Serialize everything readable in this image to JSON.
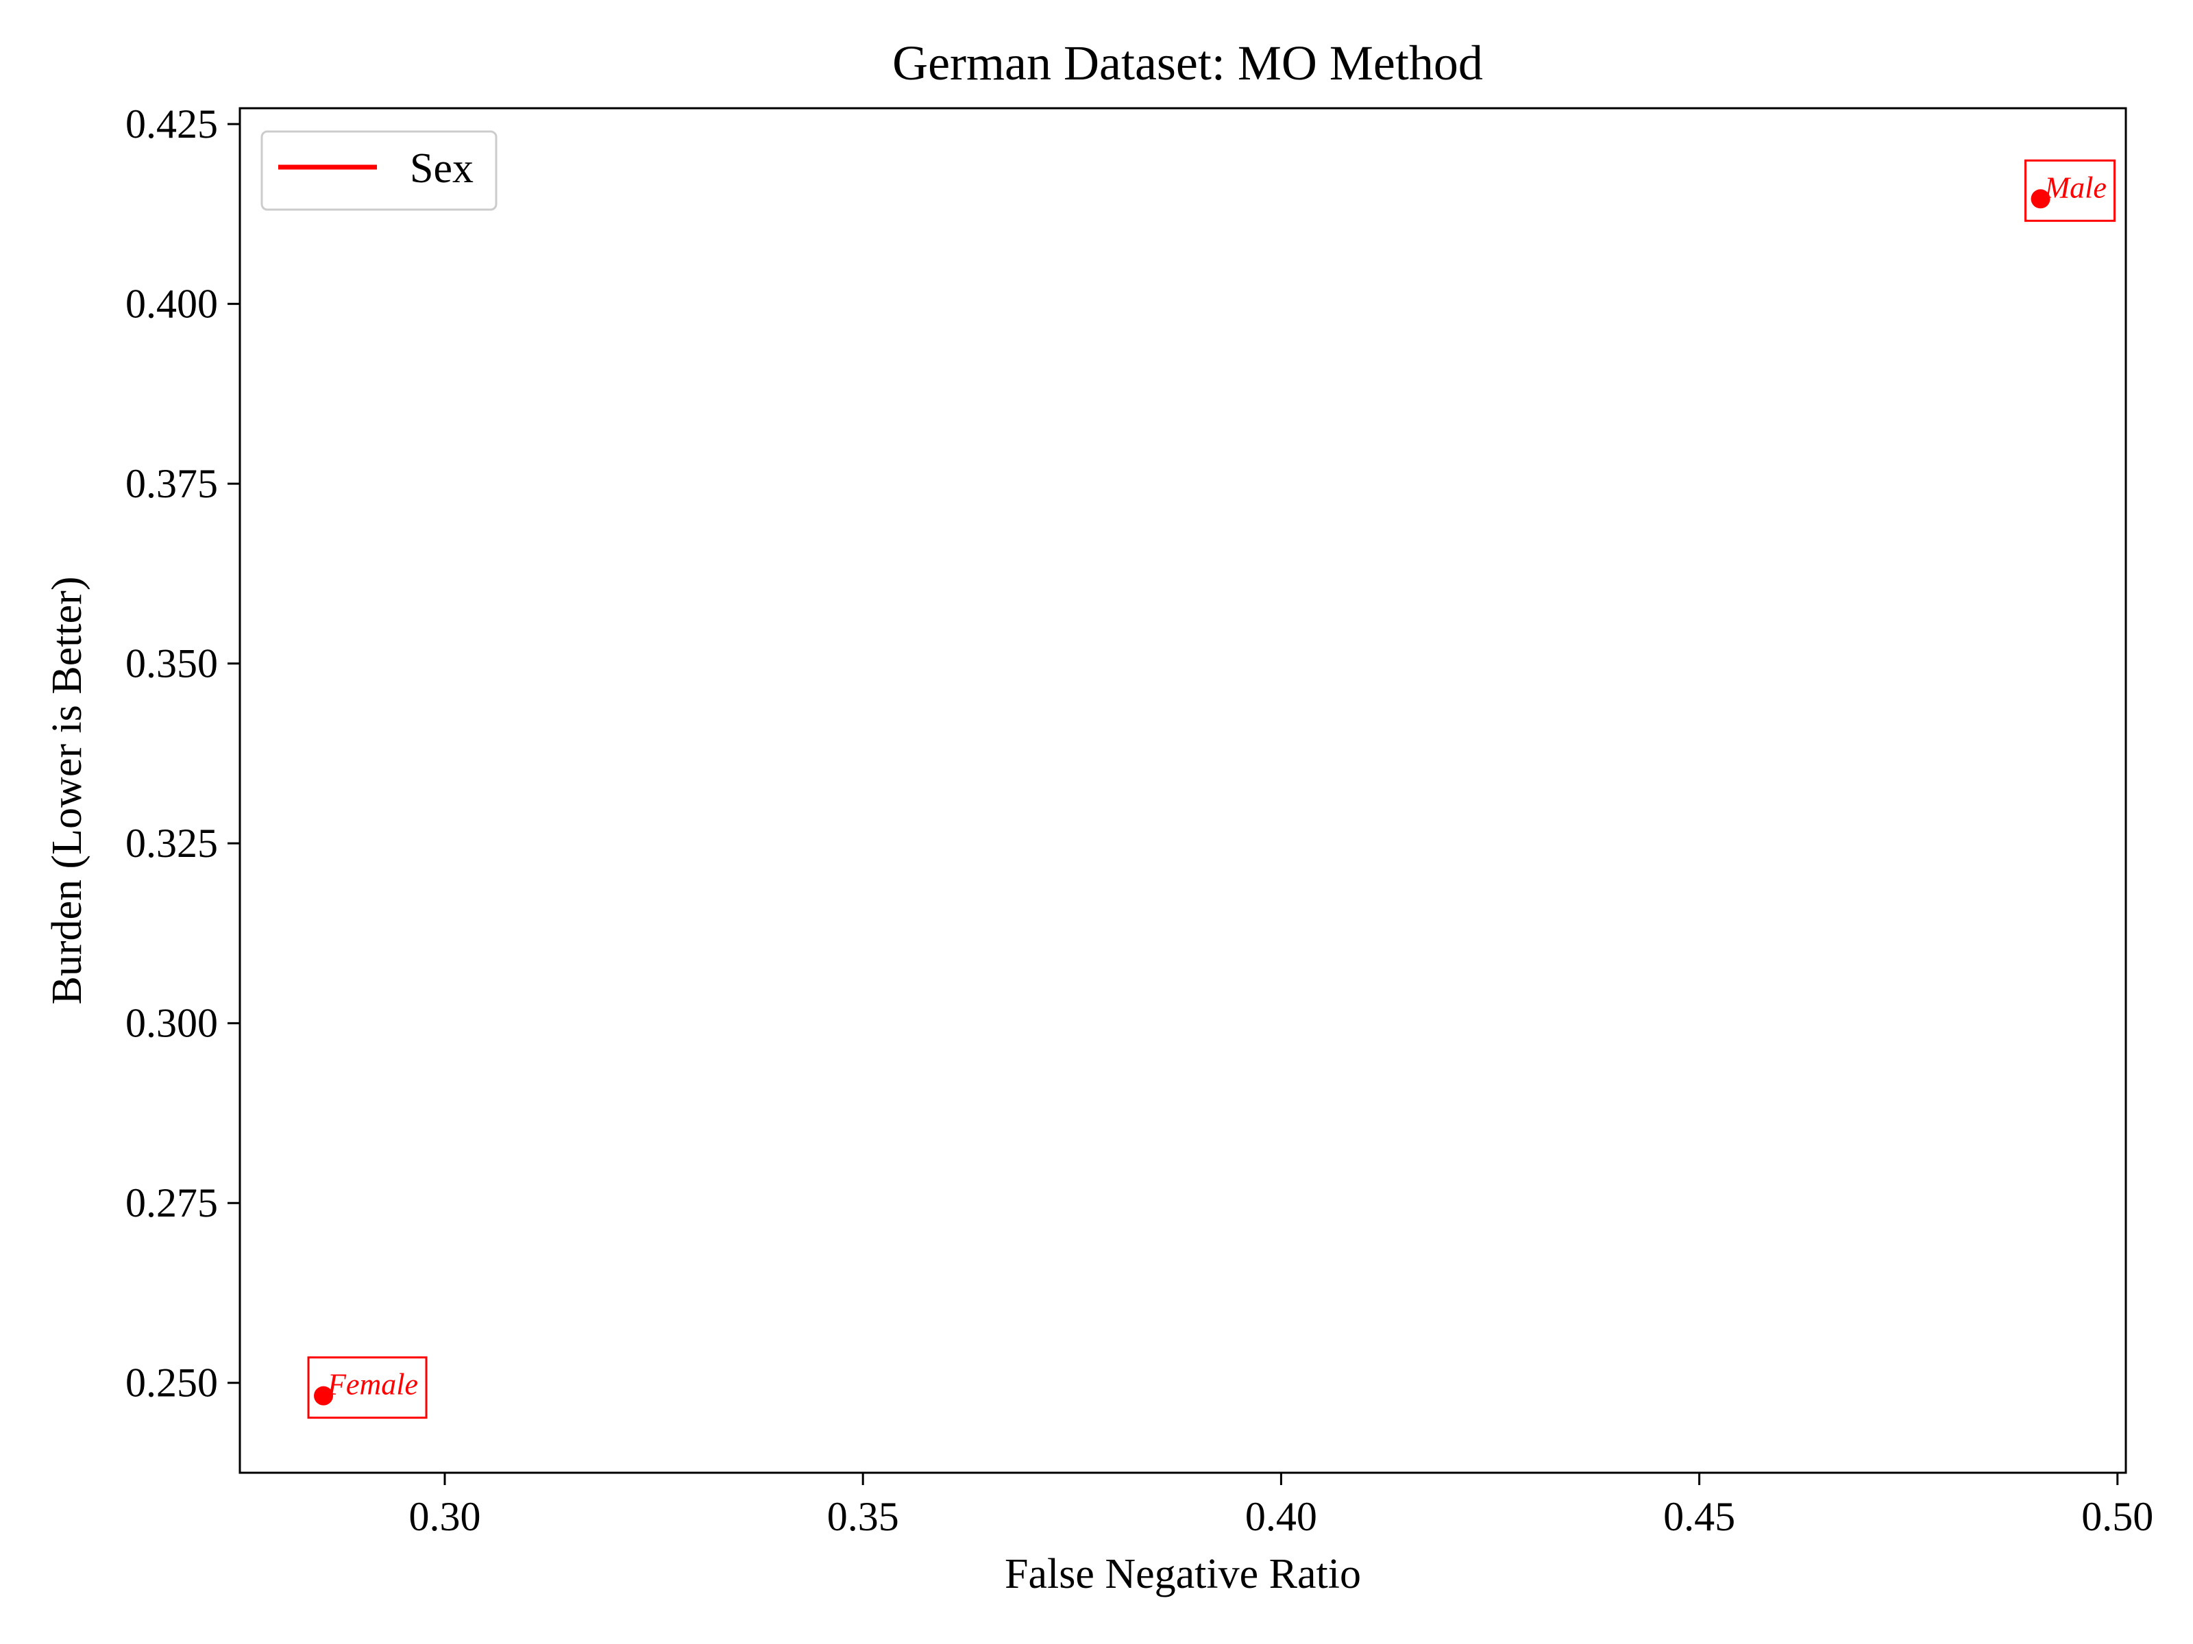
{
  "chart_data": {
    "type": "scatter",
    "title": "German Dataset: MO Method",
    "xlabel": "False Negative Ratio",
    "ylabel": "Burden (Lower is Better)",
    "xlim": [
      0.2755,
      0.501
    ],
    "ylim": [
      0.2375,
      0.4272
    ],
    "xticks": [
      0.3,
      0.35,
      0.4,
      0.45,
      0.5
    ],
    "xtick_labels": [
      "0.30",
      "0.35",
      "0.40",
      "0.45",
      "0.50"
    ],
    "yticks": [
      0.25,
      0.275,
      0.3,
      0.325,
      0.35,
      0.375,
      0.4,
      0.425
    ],
    "ytick_labels": [
      "0.250",
      "0.275",
      "0.300",
      "0.325",
      "0.350",
      "0.375",
      "0.400",
      "0.425"
    ],
    "grid": false,
    "legend_position": "top-left",
    "series": [
      {
        "name": "Sex",
        "color": "#ff0000",
        "points": [
          {
            "x": 0.2855,
            "y": 0.2482,
            "label": "Female"
          },
          {
            "x": 0.4908,
            "y": 0.4146,
            "label": "Male"
          }
        ]
      }
    ]
  }
}
